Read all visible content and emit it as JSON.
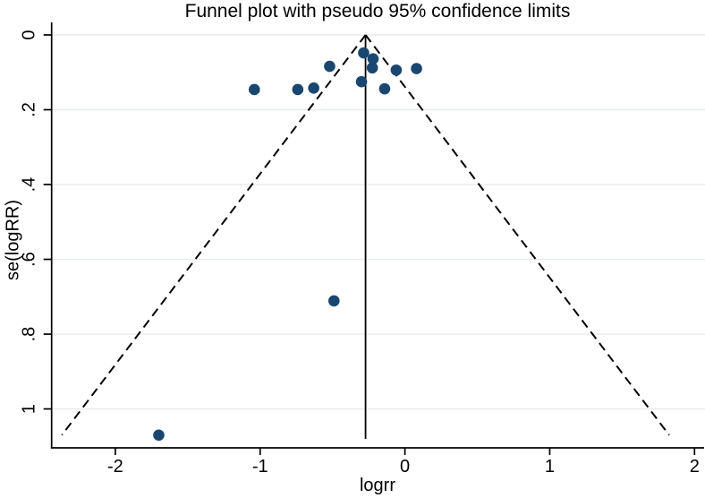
{
  "chart_data": {
    "type": "scatter",
    "title": "Funnel plot with pseudo 95% confidence limits",
    "xlabel": "logrr",
    "ylabel": "se(logRR)",
    "xlim": [
      -2.44,
      2.06
    ],
    "ylim": [
      0,
      1.1
    ],
    "y_axis_inverted": true,
    "grid": "horizontal-only",
    "legend": "none",
    "x_ticks": [
      -2,
      -1,
      0,
      1,
      2
    ],
    "x_tick_labels": [
      "-2",
      "-1",
      "0",
      "1",
      "2"
    ],
    "y_ticks": [
      0,
      0.2,
      0.4,
      0.6,
      0.8,
      1
    ],
    "y_tick_labels": [
      "0",
      ".2",
      ".4",
      ".6",
      ".8",
      "1"
    ],
    "points": [
      {
        "logrr": -1.7,
        "se": 1.07
      },
      {
        "logrr": -1.04,
        "se": 0.146
      },
      {
        "logrr": -0.74,
        "se": 0.146
      },
      {
        "logrr": -0.63,
        "se": 0.142
      },
      {
        "logrr": -0.52,
        "se": 0.084
      },
      {
        "logrr": -0.49,
        "se": 0.711
      },
      {
        "logrr": -0.3,
        "se": 0.125
      },
      {
        "logrr": -0.285,
        "se": 0.048
      },
      {
        "logrr": -0.22,
        "se": 0.064
      },
      {
        "logrr": -0.225,
        "se": 0.088
      },
      {
        "logrr": -0.14,
        "se": 0.144
      },
      {
        "logrr": -0.06,
        "se": 0.094
      },
      {
        "logrr": 0.08,
        "se": 0.09
      }
    ],
    "pooled_effect_line": {
      "logrr": -0.272,
      "se_from": 0,
      "se_to": 1.08
    },
    "funnel_limits": {
      "center_logrr": -0.272,
      "multiplier": 1.96,
      "se_from": 0,
      "se_to": 1.07,
      "style": "dashed"
    },
    "colors": {
      "marker": "#1a476f",
      "line": "#000000",
      "grid": "#e8ecec",
      "background": "#ffffff",
      "text": "#000000"
    }
  }
}
